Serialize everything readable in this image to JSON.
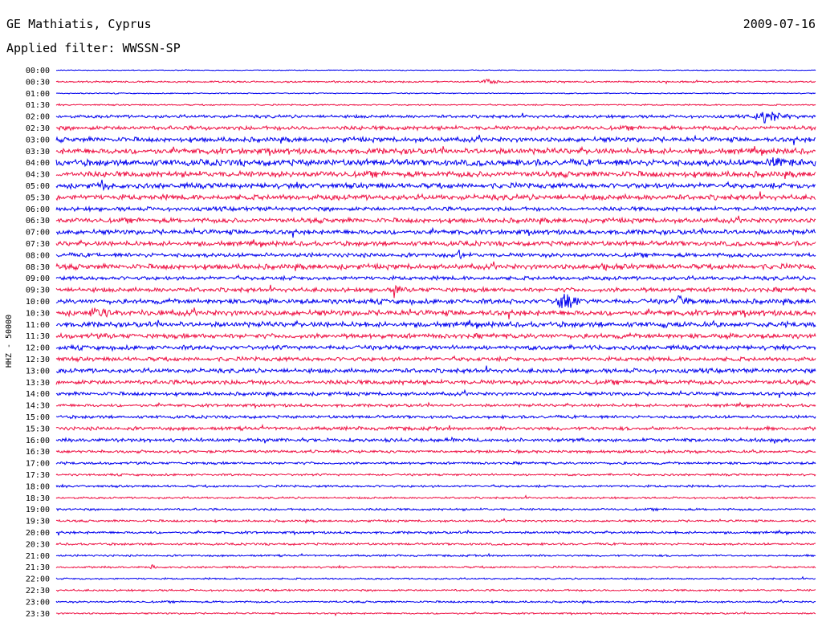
{
  "header": {
    "station": "GE Mathiatis, Cyprus",
    "date": "2009-07-16",
    "filter": "Applied filter: WWSSN-SP"
  },
  "chart_data": {
    "type": "line",
    "chart_kind": "seismogram (helicorder)",
    "ylabel": "HHZ - 50000",
    "trace_colors": [
      "#0000ee",
      "#ee1144"
    ],
    "time_labels": [
      "00:00",
      "00:30",
      "01:00",
      "01:30",
      "02:00",
      "02:30",
      "03:00",
      "03:30",
      "04:00",
      "04:30",
      "05:00",
      "05:30",
      "06:00",
      "06:30",
      "07:00",
      "07:30",
      "08:00",
      "08:30",
      "09:00",
      "09:30",
      "10:00",
      "10:30",
      "11:00",
      "11:30",
      "12:00",
      "12:30",
      "13:00",
      "13:30",
      "14:00",
      "14:30",
      "15:00",
      "15:30",
      "16:00",
      "16:30",
      "17:00",
      "17:30",
      "18:00",
      "18:30",
      "19:00",
      "19:30",
      "20:00",
      "20:30",
      "21:00",
      "21:30",
      "22:00",
      "22:30",
      "23:00",
      "23:30"
    ],
    "noise_level": [
      0.6,
      1.2,
      0.8,
      1.0,
      2.2,
      3.0,
      3.5,
      4.2,
      4.6,
      4.2,
      3.8,
      3.8,
      3.0,
      3.5,
      3.5,
      3.5,
      3.0,
      3.8,
      2.8,
      3.2,
      3.5,
      4.0,
      3.8,
      3.5,
      3.2,
      3.0,
      3.2,
      3.2,
      2.6,
      2.2,
      2.2,
      2.6,
      2.6,
      2.0,
      1.8,
      1.5,
      1.6,
      1.4,
      1.6,
      1.6,
      1.8,
      1.6,
      1.4,
      1.4,
      1.2,
      1.4,
      1.4,
      1.2
    ],
    "events": [
      {
        "row": 1,
        "x": 0.565,
        "width": 0.03,
        "amp": 5
      },
      {
        "row": 4,
        "x": 0.93,
        "width": 0.05,
        "amp": 12
      },
      {
        "row": 8,
        "x": 0.95,
        "width": 0.04,
        "amp": 10
      },
      {
        "row": 10,
        "x": 0.06,
        "width": 0.01,
        "amp": 9
      },
      {
        "row": 16,
        "x": 0.53,
        "width": 0.01,
        "amp": 10
      },
      {
        "row": 17,
        "x": 0.72,
        "width": 0.01,
        "amp": 12
      },
      {
        "row": 19,
        "x": 0.445,
        "width": 0.01,
        "amp": 16
      },
      {
        "row": 20,
        "x": 0.665,
        "width": 0.03,
        "amp": 18
      },
      {
        "row": 20,
        "x": 0.82,
        "width": 0.02,
        "amp": 16
      },
      {
        "row": 21,
        "x": 0.05,
        "width": 0.06,
        "amp": 8
      },
      {
        "row": 22,
        "x": 0.8,
        "width": 0.02,
        "amp": 10
      },
      {
        "row": 43,
        "x": 0.125,
        "width": 0.006,
        "amp": 6
      }
    ]
  }
}
